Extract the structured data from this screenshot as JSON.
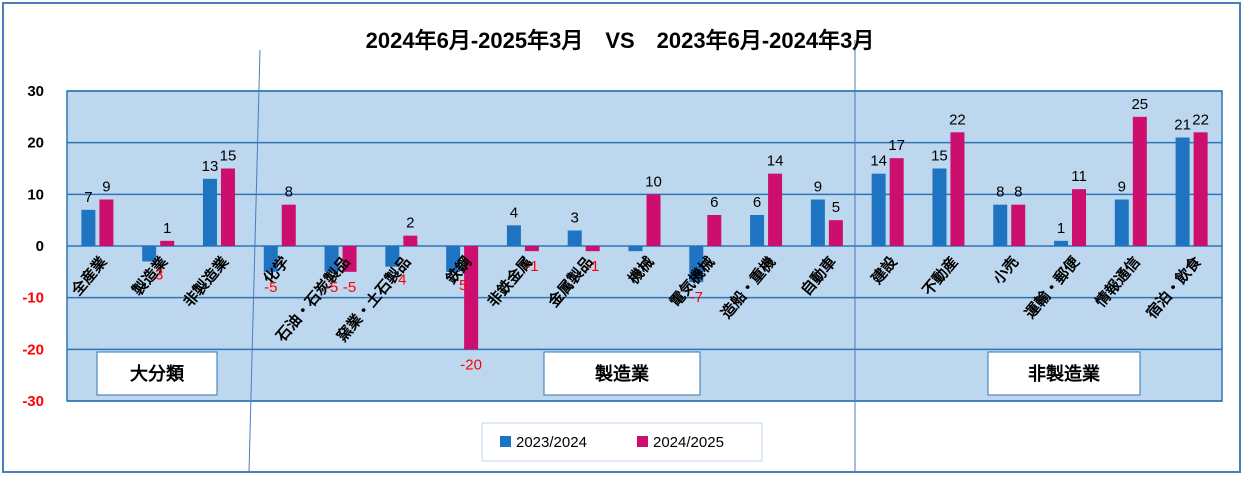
{
  "chart_data": {
    "type": "bar",
    "title": "2024年6月-2025年3月　VS　2023年6月-2024年3月",
    "categories": [
      "全産業",
      "製造業",
      "非製造業",
      "化学",
      "石油・石炭製品",
      "窯業・土石製品",
      "鉄鋼",
      "非鉄金属",
      "金属製品",
      "機械",
      "電気機械",
      "造船・重機",
      "自動車",
      "建設",
      "不動産",
      "小売",
      "運輸・郵便",
      "情報通信",
      "宿泊・飲食"
    ],
    "series": [
      {
        "name": "2023/2024",
        "color": "#1f74c1",
        "values": [
          7,
          -3,
          13,
          -5,
          -5,
          -4,
          -5,
          4,
          3,
          -1,
          -7,
          6,
          9,
          14,
          15,
          8,
          1,
          9,
          21
        ],
        "labels": [
          "7",
          "",
          "13",
          "-5",
          "-5",
          "",
          "",
          "4",
          "3",
          "",
          "-7",
          "6",
          "9",
          "14",
          "15",
          "8",
          "1",
          "9",
          "21"
        ]
      },
      {
        "name": "2024/2025",
        "color": "#cc0e6e",
        "values": [
          9,
          1,
          15,
          8,
          -5,
          2,
          -20,
          -1,
          -1,
          10,
          6,
          14,
          5,
          17,
          22,
          8,
          11,
          25,
          22
        ],
        "labels": [
          "9",
          "1",
          "15",
          "8",
          "-5",
          "2",
          "-20",
          "-1",
          "-1",
          "10",
          "6",
          "14",
          "5",
          "17",
          "22",
          "8",
          "11",
          "25",
          "22"
        ]
      }
    ],
    "extra_labels": [
      {
        "index": 1,
        "series": 0,
        "text": "3"
      },
      {
        "index": 5,
        "series": 0,
        "text": "4"
      },
      {
        "index": 6,
        "series": 0,
        "text": "5"
      }
    ],
    "ylim": [
      -30,
      30
    ],
    "yticks": [
      30,
      20,
      10,
      0,
      -10,
      -20,
      -30
    ],
    "legend": "bottom",
    "grid": true,
    "group_boxes": [
      {
        "label": "大分類"
      },
      {
        "label": "製造業"
      },
      {
        "label": "非製造業"
      }
    ],
    "colors": {
      "plot_bg": "#bdd7ee",
      "grid": "#2e75b6",
      "negative_label": "#ff0000",
      "positive_label": "#000000"
    }
  }
}
